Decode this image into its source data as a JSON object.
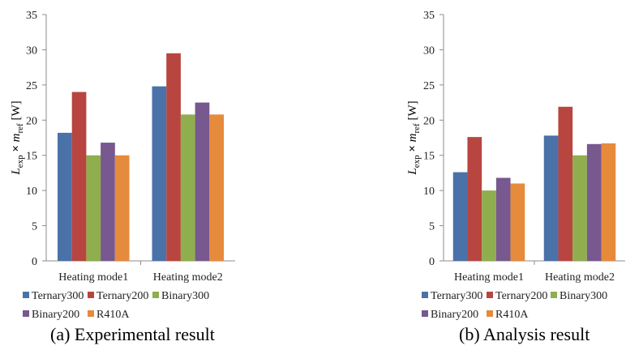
{
  "chart_data": [
    {
      "type": "bar",
      "caption": "(a) Experimental result",
      "categories": [
        "Heating mode1",
        "Heating mode2"
      ],
      "ylabel_parts": [
        "L",
        "exp",
        " × ",
        "m",
        "ref",
        " [W]"
      ],
      "ylim": [
        0,
        35
      ],
      "yticks": [
        0,
        5,
        10,
        15,
        20,
        25,
        30,
        35
      ],
      "grid": false,
      "legend_position": "bottom",
      "series": [
        {
          "name": "Ternary300",
          "color": "#4a72a8",
          "values": [
            18.2,
            24.8
          ]
        },
        {
          "name": "Ternary200",
          "color": "#b84540",
          "values": [
            24.0,
            29.5
          ]
        },
        {
          "name": "Binary300",
          "color": "#8fae4d",
          "values": [
            15.0,
            20.8
          ]
        },
        {
          "name": "Binary200",
          "color": "#77588f",
          "values": [
            16.8,
            22.5
          ]
        },
        {
          "name": "R410A",
          "color": "#e68a3c",
          "values": [
            15.0,
            20.8
          ]
        }
      ]
    },
    {
      "type": "bar",
      "caption": "(b) Analysis result",
      "categories": [
        "Heating mode1",
        "Heating mode2"
      ],
      "ylabel_parts": [
        "L",
        "exp",
        " × ",
        "m",
        "ref",
        " [W]"
      ],
      "ylim": [
        0,
        35
      ],
      "yticks": [
        0,
        5,
        10,
        15,
        20,
        25,
        30,
        35
      ],
      "grid": false,
      "legend_position": "bottom",
      "series": [
        {
          "name": "Ternary300",
          "color": "#4a72a8",
          "values": [
            12.6,
            17.8
          ]
        },
        {
          "name": "Ternary200",
          "color": "#b84540",
          "values": [
            17.6,
            21.9
          ]
        },
        {
          "name": "Binary300",
          "color": "#8fae4d",
          "values": [
            10.0,
            15.0
          ]
        },
        {
          "name": "Binary200",
          "color": "#77588f",
          "values": [
            11.8,
            16.6
          ]
        },
        {
          "name": "R410A",
          "color": "#e68a3c",
          "values": [
            11.0,
            16.7
          ]
        }
      ]
    }
  ]
}
